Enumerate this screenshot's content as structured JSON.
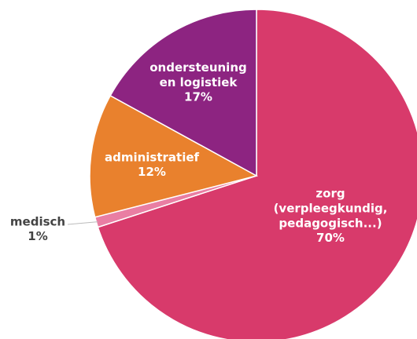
{
  "chart_data": {
    "type": "pie",
    "categories": [
      "zorg (verpleegkundig, pedagogisch...)",
      "medisch",
      "administratief",
      "ondersteuning en logistiek"
    ],
    "values": [
      70,
      1,
      12,
      17
    ],
    "value_labels": [
      "70%",
      "1%",
      "12%",
      "17%"
    ],
    "colors": [
      "#d83a6b",
      "#e97ea3",
      "#e9812d",
      "#8d2481"
    ]
  }
}
